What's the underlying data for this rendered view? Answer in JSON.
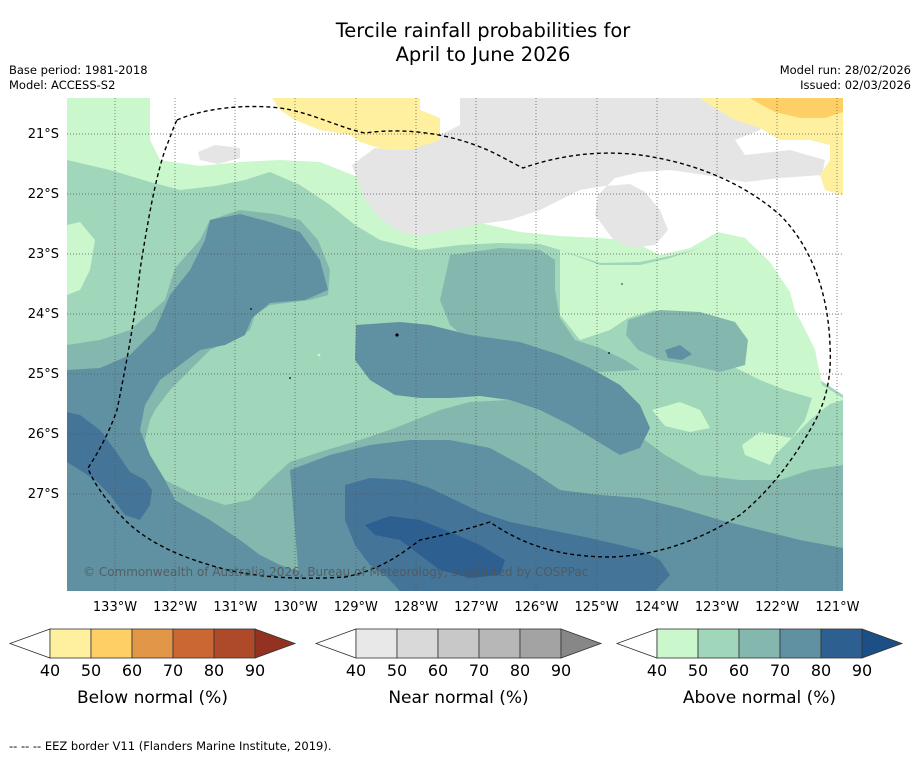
{
  "title": {
    "line1": "Tercile rainfall probabilities for",
    "line2": "April to June 2026"
  },
  "meta_left": {
    "base_period": "Base period: 1981-2018",
    "model": "Model: ACCESS-S2"
  },
  "meta_right": {
    "model_run": "Model run: 28/02/2026",
    "issued": "Issued: 02/03/2026"
  },
  "map": {
    "latitude_labels": [
      "21°S",
      "22°S",
      "23°S",
      "24°S",
      "25°S",
      "26°S",
      "27°S"
    ],
    "longitude_labels": [
      "133°W",
      "132°W",
      "131°W",
      "130°W",
      "129°W",
      "128°W",
      "127°W",
      "126°W",
      "125°W",
      "124°W",
      "123°W",
      "122°W",
      "121°W"
    ],
    "copyright": "© Commonwealth of Australia 2026, Bureau of Meteorology, supported by COSPPac"
  },
  "legends": [
    {
      "name": "Below normal (%)",
      "ticks": [
        "40",
        "50",
        "60",
        "70",
        "80",
        "90"
      ],
      "colors": [
        "#ffffff",
        "#fff0a0",
        "#fecf65",
        "#e19648",
        "#ca6733",
        "#ae4a29",
        "#943222"
      ]
    },
    {
      "name": "Near normal (%)",
      "ticks": [
        "40",
        "50",
        "60",
        "70",
        "80",
        "90"
      ],
      "colors": [
        "#ffffff",
        "#e8e8e8",
        "#d9d9d9",
        "#c8c8c8",
        "#b7b7b7",
        "#a3a3a3",
        "#878787"
      ]
    },
    {
      "name": "Above normal (%)",
      "ticks": [
        "40",
        "50",
        "60",
        "70",
        "80",
        "90"
      ],
      "colors": [
        "#ffffff",
        "#caf7cb",
        "#a0d6b9",
        "#84b8af",
        "#5f91a2",
        "#2d5f91",
        "#1b4f86"
      ]
    }
  ],
  "footer": "--  --  -- EEZ border V11 (Flanders Marine Institute, 2019)."
}
